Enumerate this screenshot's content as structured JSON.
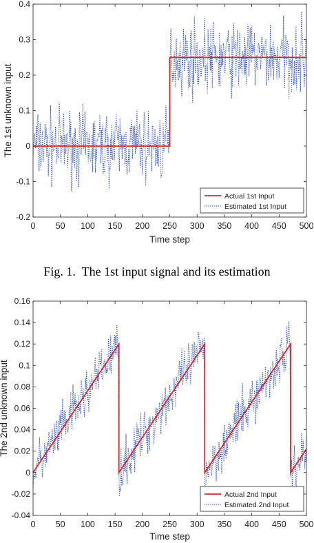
{
  "figure1": {
    "caption": "Fig. 1.  The 1st input signal and its estimation"
  },
  "chart_data": [
    {
      "type": "line",
      "title": "",
      "xlabel": "Time step",
      "ylabel": "The 1st unknown input",
      "xlim": [
        0,
        500
      ],
      "ylim": [
        -0.2,
        0.4
      ],
      "xticks": [
        0,
        50,
        100,
        150,
        200,
        250,
        300,
        350,
        400,
        450,
        500
      ],
      "yticks": [
        -0.2,
        -0.1,
        0,
        0.1,
        0.2,
        0.3,
        0.4
      ],
      "grid": false,
      "legend_position": "lower-right",
      "series": [
        {
          "name": "Actual 1st Input",
          "color": "#d62728",
          "style": "solid",
          "x": [
            0,
            250,
            250,
            500
          ],
          "y": [
            0,
            0,
            0.25,
            0.25
          ]
        },
        {
          "name": "Estimated 1st Input",
          "color": "#3355bb",
          "style": "dotted",
          "description": "noisy estimate: about 0 with noise amplitude about 0.1 for steps 0-250, about 0.25 with noise amplitude about 0.1 for steps 250-500",
          "levels": [
            {
              "x_range": [
                0,
                250
              ],
              "center": 0.0,
              "spread": 0.11
            },
            {
              "x_range": [
                250,
                500
              ],
              "center": 0.25,
              "spread": 0.11
            }
          ]
        }
      ]
    },
    {
      "type": "line",
      "title": "",
      "xlabel": "Time step",
      "ylabel": "The 2nd unknown input",
      "xlim": [
        0,
        500
      ],
      "ylim": [
        -0.04,
        0.16
      ],
      "xticks": [
        0,
        50,
        100,
        150,
        200,
        250,
        300,
        350,
        400,
        450,
        500
      ],
      "yticks": [
        -0.04,
        -0.02,
        0,
        0.02,
        0.04,
        0.06,
        0.08,
        0.1,
        0.12,
        0.14,
        0.16
      ],
      "grid": false,
      "legend_position": "lower-right",
      "series": [
        {
          "name": "Actual 2nd Input",
          "color": "#d62728",
          "style": "solid",
          "x": [
            0,
            157,
            157,
            314,
            314,
            471,
            471,
            500
          ],
          "y": [
            0,
            0.12,
            0,
            0.12,
            0,
            0.12,
            0,
            0.022
          ]
        },
        {
          "name": "Estimated 2nd Input",
          "color": "#3355bb",
          "style": "dotted",
          "description": "noisy estimate following the sawtooth with noise amplitude about 0.025",
          "noise_spread": 0.025
        }
      ]
    }
  ]
}
